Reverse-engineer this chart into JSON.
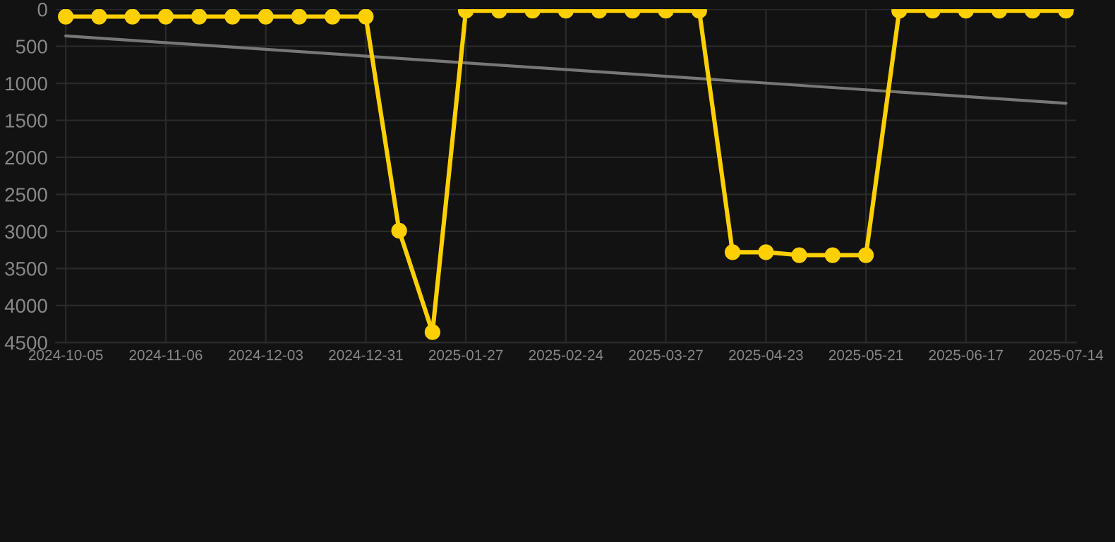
{
  "chart_data": {
    "type": "line",
    "categories": [
      "2024-10-05",
      null,
      null,
      "2024-11-06",
      null,
      null,
      "2024-12-03",
      null,
      null,
      "2024-12-31",
      null,
      null,
      "2025-01-27",
      null,
      null,
      "2025-02-24",
      null,
      null,
      "2025-03-27",
      null,
      null,
      "2025-04-23",
      null,
      null,
      "2025-05-21",
      null,
      null,
      "2025-06-17",
      null,
      null,
      "2025-07-14"
    ],
    "series": [
      {
        "color": "#ffd000",
        "marker": "circle",
        "values": [
          100,
          100,
          100,
          100,
          100,
          100,
          100,
          100,
          100,
          100,
          2990,
          4360,
          20,
          20,
          20,
          20,
          20,
          20,
          20,
          20,
          3280,
          3280,
          3320,
          3320,
          3320,
          20,
          20,
          20,
          20,
          20,
          20
        ]
      },
      {
        "color": "#777777",
        "marker": "none",
        "values": [
          360,
          null,
          null,
          null,
          null,
          null,
          null,
          null,
          null,
          null,
          null,
          null,
          null,
          null,
          null,
          null,
          null,
          null,
          null,
          null,
          null,
          null,
          null,
          null,
          null,
          null,
          null,
          null,
          null,
          null,
          1270
        ]
      }
    ],
    "ylim": [
      4500,
      0
    ],
    "yticks": [
      0,
      500,
      1000,
      1500,
      2000,
      2500,
      3000,
      3500,
      4000,
      4500
    ],
    "grid": true
  }
}
